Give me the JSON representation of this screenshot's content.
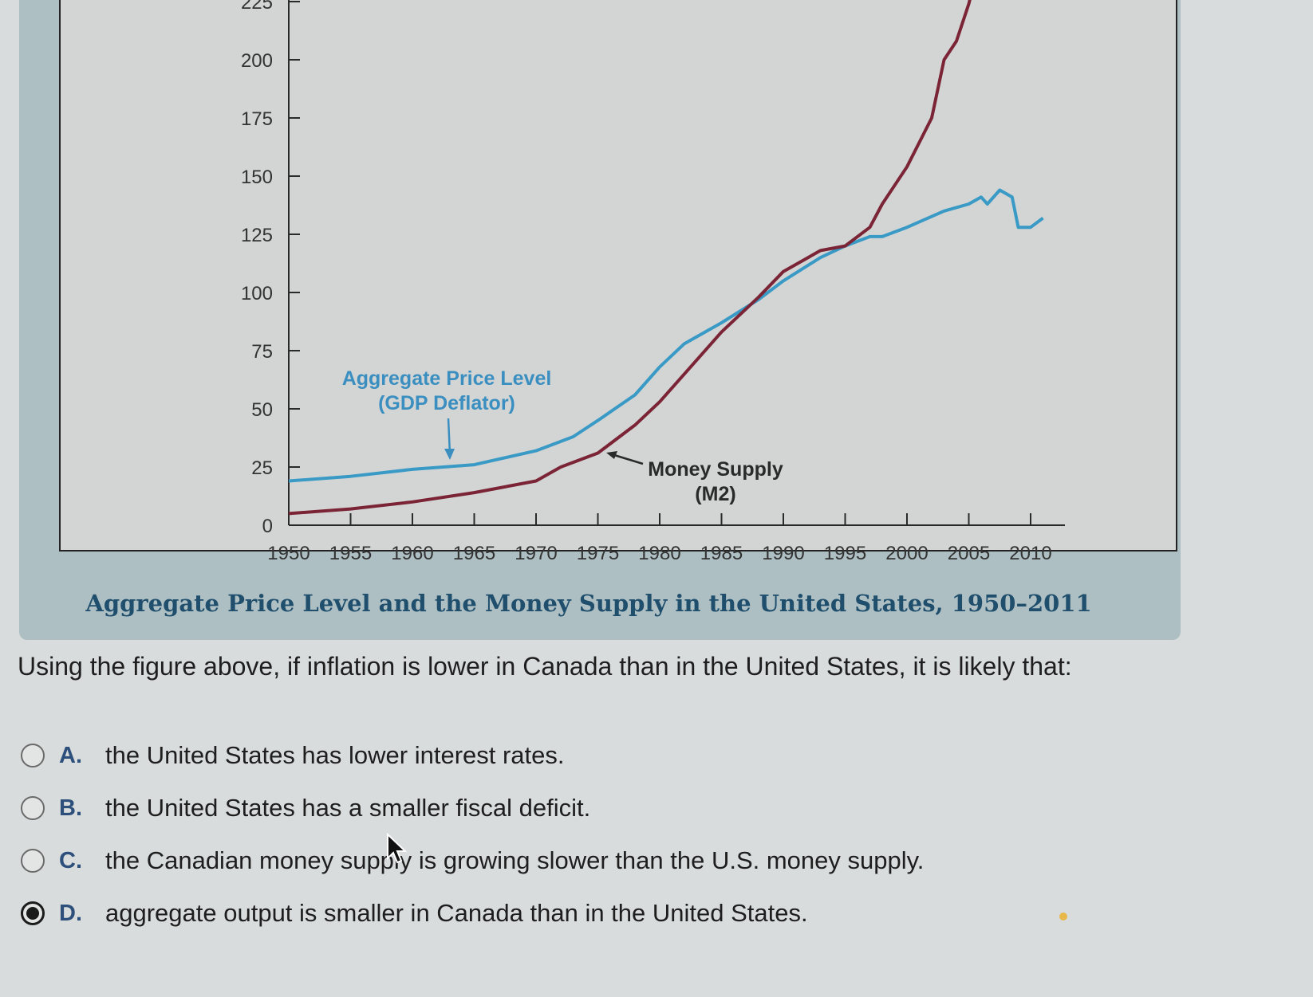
{
  "chart_data": {
    "type": "line",
    "title": "Aggregate Price Level and the Money Supply in the United States, 1950–2011",
    "x_ticks": [
      "1950",
      "1955",
      "1960",
      "1965",
      "1970",
      "1975",
      "1980",
      "1985",
      "1990",
      "1995",
      "2000",
      "2005",
      "2010"
    ],
    "y_ticks": [
      "0",
      "25",
      "50",
      "75",
      "100",
      "125",
      "150",
      "175",
      "200",
      "225"
    ],
    "xlim": [
      1950,
      2012
    ],
    "ylim": [
      0,
      225
    ],
    "series": [
      {
        "name": "Aggregate Price Level (GDP Deflator)",
        "color": "#3a9ac6",
        "x": [
          1950,
          1955,
          1960,
          1965,
          1970,
          1973,
          1975,
          1978,
          1980,
          1982,
          1985,
          1988,
          1990,
          1993,
          1995,
          1997,
          1998,
          2000,
          2003,
          2005,
          2006,
          2006.5,
          2007.5,
          2008.5,
          2009,
          2010,
          2011
        ],
        "y": [
          19,
          21,
          24,
          26,
          32,
          38,
          45,
          56,
          68,
          78,
          87,
          97,
          105,
          115,
          120,
          124,
          124,
          128,
          135,
          138,
          141,
          138,
          144,
          141,
          128,
          128,
          132
        ]
      },
      {
        "name": "Money Supply (M2)",
        "color": "#7b2436",
        "x": [
          1950,
          1955,
          1960,
          1965,
          1970,
          1972,
          1975,
          1978,
          1980,
          1982,
          1985,
          1988,
          1990,
          1993,
          1995,
          1997,
          1998,
          2000,
          2002,
          2003,
          2004,
          2005,
          2006
        ],
        "y": [
          5,
          7,
          10,
          14,
          19,
          25,
          31,
          43,
          53,
          65,
          83,
          98,
          109,
          118,
          120,
          128,
          138,
          154,
          175,
          200,
          208,
          224,
          245
        ]
      }
    ],
    "annotations": {
      "price_level_line1": "Aggregate Price Level",
      "price_level_line2": "(GDP Deflator)",
      "money_supply_line1": "Money Supply",
      "money_supply_line2": "(M2)"
    }
  },
  "question": {
    "text": "Using the figure above, if inflation is lower in Canada than in the United States, it is likely that:",
    "options": [
      {
        "letter": "A.",
        "text": "the United States has lower interest rates.",
        "selected": false
      },
      {
        "letter": "B.",
        "text": "the United States has a smaller fiscal deficit.",
        "selected": false
      },
      {
        "letter": "C.",
        "text": "the Canadian money supply is growing slower than the U.S. money supply.",
        "selected": false
      },
      {
        "letter": "D.",
        "text": "aggregate output is smaller in Canada than in the United States.",
        "selected": true
      }
    ]
  },
  "icons": {
    "cursor": "mouse-pointer-icon"
  }
}
